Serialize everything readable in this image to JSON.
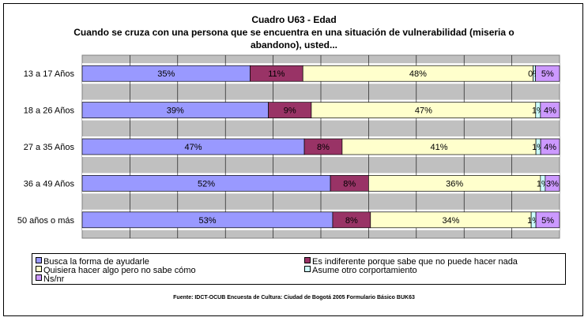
{
  "chart_data": {
    "type": "bar",
    "orientation": "horizontal",
    "stacked": "percent",
    "title": "Cuadro U63 - Edad",
    "subtitle_lines": [
      "Cuando se cruza con una persona que se encuentra en una situación de vulnerabilidad (miseria o",
      "abandono), usted..."
    ],
    "categories": [
      "13 a 17 Años",
      "18 a 26 Años",
      "27 a 35 Años",
      "36 a 49 Años",
      "50 años o más"
    ],
    "series": [
      {
        "name": "Busca la forma de ayudarle",
        "color": "#9999ff",
        "values": [
          35,
          39,
          47,
          52,
          53
        ],
        "labels": [
          "35%",
          "39%",
          "47%",
          "52%",
          "53%"
        ]
      },
      {
        "name": "Es indiferente porque sabe que no puede hacer nada",
        "color": "#993366",
        "values": [
          11,
          9,
          8,
          8,
          8
        ],
        "labels": [
          "11%",
          "9%",
          "8%",
          "8%",
          "8%"
        ]
      },
      {
        "name": "Quisiera hacer algo pero no sabe cómo",
        "color": "#ffffcc",
        "values": [
          48,
          47,
          41,
          36,
          34
        ],
        "labels": [
          "48%",
          "47%",
          "41%",
          "36%",
          "34%"
        ]
      },
      {
        "name": "Asume otro corportamiento",
        "color": "#ccffff",
        "values": [
          0.5,
          1,
          1,
          1,
          1
        ],
        "labels": [
          "0%",
          "1%",
          "1%",
          "1%",
          "1%"
        ]
      },
      {
        "name": "Ns/nr",
        "color": "#cc99ff",
        "values": [
          5,
          4,
          4,
          3,
          5
        ],
        "labels": [
          "5%",
          "4%",
          "4%",
          "3%",
          "5%"
        ]
      }
    ],
    "xlim": [
      0,
      100
    ],
    "grid": true,
    "plot_background": "#c0c0c0",
    "legend_position": "bottom"
  },
  "legend_items": [
    {
      "label": "Busca la forma de ayudarle",
      "color": "#9999ff"
    },
    {
      "label": "Es indiferente porque sabe que no puede hacer nada",
      "color": "#993366"
    },
    {
      "label": "Quisiera hacer algo pero no sabe cómo",
      "color": "#ffffcc"
    },
    {
      "label": "Asume otro corportamiento",
      "color": "#ccffff"
    },
    {
      "label": "Ns/nr",
      "color": "#cc99ff"
    }
  ],
  "source_note": "Fuente: IDCT-OCUB Encuesta de Cultura: Ciudad de Bogotá 2005 Formulario Básico BUK63"
}
